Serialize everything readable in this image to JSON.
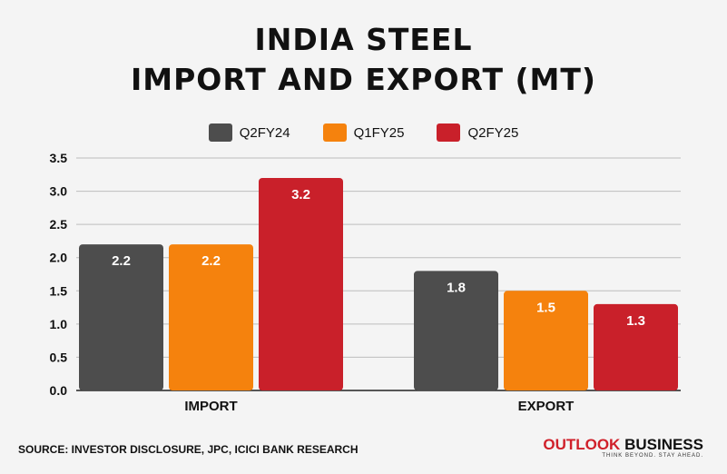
{
  "title_lines": [
    "INDIA STEEL",
    "IMPORT AND EXPORT (MT)"
  ],
  "source": "SOURCE: INVESTOR DISCLOSURE, JPC, ICICI BANK RESEARCH",
  "brand": {
    "part1": "OUTLOOK",
    "part2": "BUSINESS",
    "tagline": "THINK BEYOND. STAY AHEAD.",
    "color1": "#d0202a",
    "color2": "#111111"
  },
  "chart_data": {
    "type": "bar",
    "title": "INDIA STEEL IMPORT AND EXPORT (MT)",
    "categories": [
      "IMPORT",
      "EXPORT"
    ],
    "series": [
      {
        "name": "Q2FY24",
        "color": "#4d4d4d",
        "values": [
          2.2,
          1.8
        ]
      },
      {
        "name": "Q1FY25",
        "color": "#f5820d",
        "values": [
          2.2,
          1.5
        ]
      },
      {
        "name": "Q2FY25",
        "color": "#c9202a",
        "values": [
          3.2,
          1.3
        ]
      }
    ],
    "ylim": [
      0,
      3.5
    ],
    "yticks": [
      "0.0",
      "0.5",
      "1.0",
      "1.5",
      "2.0",
      "2.5",
      "3.0",
      "3.5"
    ],
    "grid": true,
    "legend": "top-center"
  }
}
